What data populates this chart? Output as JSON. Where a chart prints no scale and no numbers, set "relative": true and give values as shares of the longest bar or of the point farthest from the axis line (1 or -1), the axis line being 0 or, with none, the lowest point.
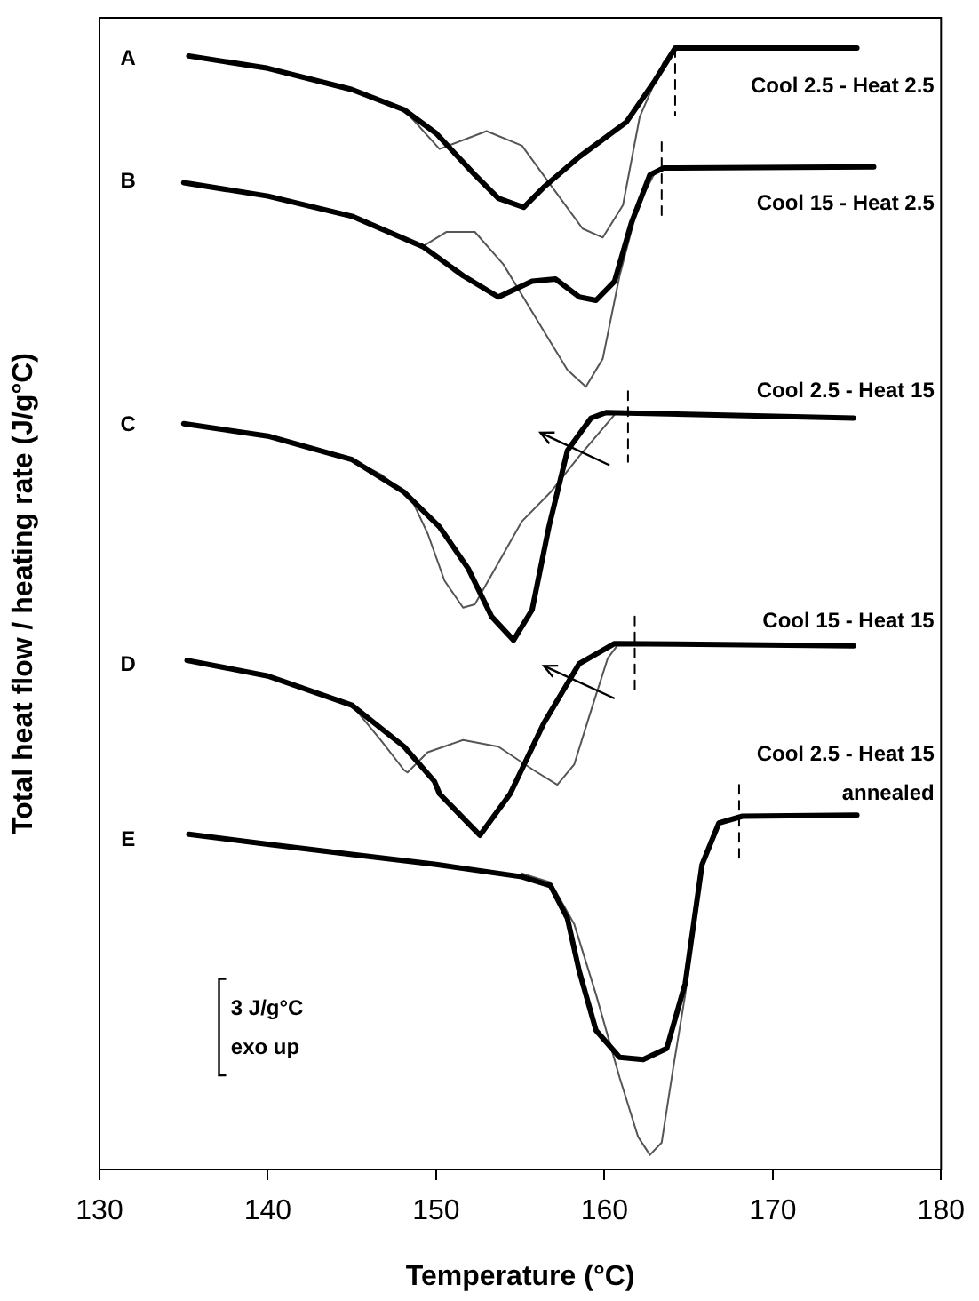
{
  "chart_data": {
    "type": "line",
    "relative": true,
    "xlabel": "Temperature (°C)",
    "ylabel": "Total heat flow / heating rate (J/g°C)",
    "xlim": [
      130,
      180
    ],
    "xticks": [
      130,
      140,
      150,
      160,
      170,
      180
    ],
    "grid": false,
    "legend": false,
    "series": [
      {
        "color": "#000000",
        "x": [
          135.3,
          140,
          145,
          148.1,
          150,
          152.3,
          153.7,
          155.2,
          156.4,
          158.5,
          161.3,
          163,
          164.2,
          175
        ],
        "values": [
          0.993,
          0.982,
          0.963,
          0.945,
          0.924,
          0.887,
          0.866,
          0.858,
          0.876,
          0.903,
          0.934,
          0.971,
          1.0,
          1.0
        ]
      },
      {
        "color": "#555555",
        "x": [
          148.1,
          150.2,
          153,
          155.1,
          156.9,
          158.7,
          159.9,
          161.1,
          162.1,
          163.5,
          164.2
        ],
        "values": [
          0.945,
          0.91,
          0.926,
          0.913,
          0.876,
          0.839,
          0.831,
          0.86,
          0.939,
          0.987,
          1.0
        ]
      },
      {
        "color": "#000000",
        "x": [
          135,
          140,
          145,
          149.2,
          151.6,
          153.7,
          155.7,
          157.1,
          158.5,
          159.5,
          160.6,
          161.6,
          162.7,
          163.5,
          176
        ],
        "values": [
          0.88,
          0.868,
          0.85,
          0.823,
          0.797,
          0.778,
          0.792,
          0.794,
          0.778,
          0.775,
          0.792,
          0.844,
          0.887,
          0.893,
          0.894
        ]
      },
      {
        "color": "#555555",
        "x": [
          149.2,
          150.6,
          152.3,
          154,
          156.1,
          157.8,
          158.9,
          159.9,
          160.9,
          162,
          163
        ],
        "values": [
          0.823,
          0.836,
          0.836,
          0.807,
          0.755,
          0.713,
          0.698,
          0.723,
          0.797,
          0.86,
          0.889
        ]
      },
      {
        "color": "#000000",
        "x": [
          135,
          140,
          145,
          148.1,
          150.2,
          151.9,
          153.3,
          154.6,
          155.7,
          156.7,
          157.8,
          159.2,
          160.1,
          174.8
        ],
        "values": [
          0.665,
          0.654,
          0.633,
          0.604,
          0.573,
          0.536,
          0.493,
          0.472,
          0.499,
          0.573,
          0.641,
          0.67,
          0.675,
          0.67
        ]
      },
      {
        "color": "#555555",
        "x": [
          145,
          146.7,
          148.5,
          149.5,
          150.5,
          151.6,
          152.3,
          153.7,
          155.1,
          156.8,
          158.5,
          160.6
        ],
        "values": [
          0.633,
          0.62,
          0.599,
          0.567,
          0.525,
          0.501,
          0.504,
          0.541,
          0.578,
          0.604,
          0.636,
          0.673
        ]
      },
      {
        "color": "#000000",
        "x": [
          135.2,
          140,
          145,
          148.1,
          149.9,
          150.2,
          152.6,
          154.4,
          156.4,
          158.5,
          160.6,
          174.8
        ],
        "values": [
          0.454,
          0.44,
          0.414,
          0.377,
          0.346,
          0.335,
          0.298,
          0.335,
          0.398,
          0.451,
          0.469,
          0.467
        ]
      },
      {
        "color": "#555555",
        "x": [
          145,
          146.7,
          148.1,
          148.3,
          149.5,
          151.6,
          153.7,
          155.8,
          157.2,
          158.2,
          159.2,
          160.2,
          160.9
        ],
        "values": [
          0.414,
          0.383,
          0.356,
          0.354,
          0.372,
          0.383,
          0.377,
          0.356,
          0.343,
          0.361,
          0.409,
          0.456,
          0.47
        ]
      },
      {
        "color": "#000000",
        "x": [
          135.3,
          140,
          145,
          150,
          155.1,
          156.8,
          157.8,
          158.5,
          159.5,
          160.9,
          162.3,
          163.7,
          164.8,
          165.8,
          166.8,
          168.2,
          175
        ],
        "values": [
          0.299,
          0.29,
          0.281,
          0.272,
          0.261,
          0.253,
          0.224,
          0.177,
          0.124,
          0.1,
          0.098,
          0.108,
          0.166,
          0.272,
          0.309,
          0.315,
          0.316
        ]
      },
      {
        "color": "#555555",
        "x": [
          155.1,
          156.8,
          158.2,
          159.5,
          160.9,
          162,
          162.7,
          163.4,
          164.1,
          164.8,
          165.8,
          166.8
        ],
        "values": [
          0.264,
          0.256,
          0.219,
          0.156,
          0.082,
          0.029,
          0.013,
          0.024,
          0.092,
          0.156,
          0.272,
          0.309
        ]
      },
      {
        "color": "#000000",
        "line_style": "dashed",
        "x": [
          164.2,
          164.2
        ],
        "values": [
          1.0,
          0.94
        ]
      },
      {
        "color": "#000000",
        "line_style": "dashed",
        "x": [
          163.4,
          163.4
        ],
        "values": [
          0.916,
          0.847
        ]
      },
      {
        "color": "#000000",
        "line_style": "dashed",
        "x": [
          161.4,
          161.4
        ],
        "values": [
          0.694,
          0.631
        ]
      },
      {
        "color": "#000000",
        "line_style": "dashed",
        "x": [
          161.8,
          161.8
        ],
        "values": [
          0.493,
          0.425
        ]
      },
      {
        "color": "#000000",
        "line_style": "dashed",
        "x": [
          168,
          168
        ],
        "values": [
          0.343,
          0.272
        ]
      }
    ],
    "annotations": [
      "A",
      "B",
      "C",
      "D",
      "E",
      "Cool 2.5 - Heat 2.5",
      "Cool 15 - Heat 2.5",
      "Cool 2.5 - Heat 15",
      "Cool 15 - Heat 15",
      "Cool 2.5 - Heat 15",
      "annealed",
      "3 J/g°C",
      "exo up"
    ]
  }
}
